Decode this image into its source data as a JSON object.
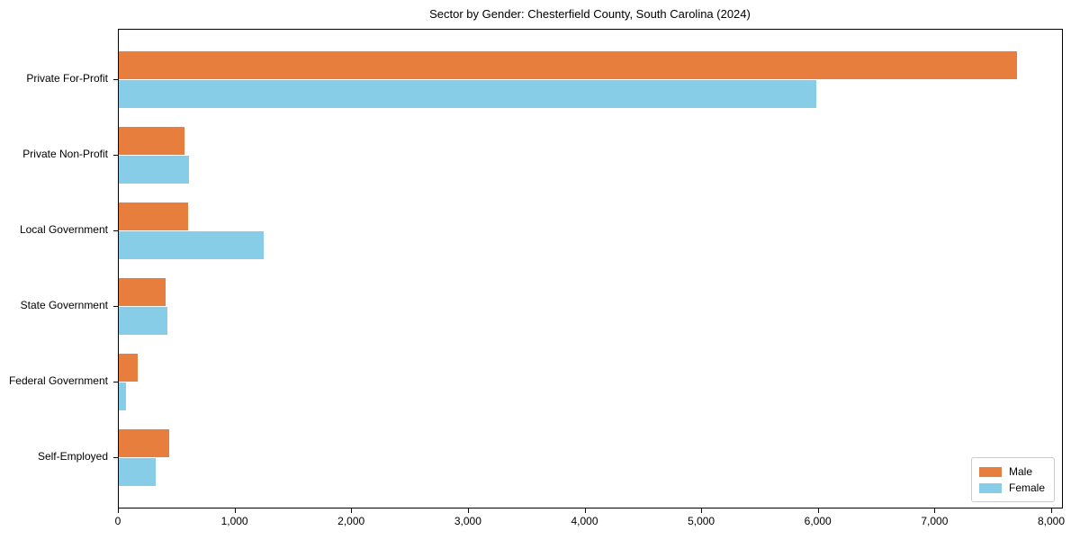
{
  "figure": {
    "background": "#ffffff",
    "border_color": "#000000"
  },
  "chart_data": {
    "type": "bar",
    "orientation": "horizontal",
    "title": "Sector by Gender: Chesterfield County, South Carolina (2024)",
    "categories": [
      "Private For-Profit",
      "Private Non-Profit",
      "Local Government",
      "State Government",
      "Federal Government",
      "Self-Employed"
    ],
    "series": [
      {
        "name": "Male",
        "color": "#E87E3E",
        "values": [
          7700,
          565,
          590,
          400,
          165,
          435
        ]
      },
      {
        "name": "Female",
        "color": "#87CDE8",
        "values": [
          5980,
          605,
          1240,
          415,
          60,
          315
        ]
      }
    ],
    "xlabel": "",
    "ylabel": "",
    "xlim": [
      0,
      8085
    ],
    "x_ticks": [
      0,
      1000,
      2000,
      3000,
      4000,
      5000,
      6000,
      7000,
      8000
    ],
    "x_tick_labels": [
      "0",
      "1,000",
      "2,000",
      "3,000",
      "4,000",
      "5,000",
      "6,000",
      "7,000",
      "8,000"
    ],
    "grid": false,
    "legend": {
      "position": "lower-right",
      "entries": [
        "Male",
        "Female"
      ]
    }
  }
}
